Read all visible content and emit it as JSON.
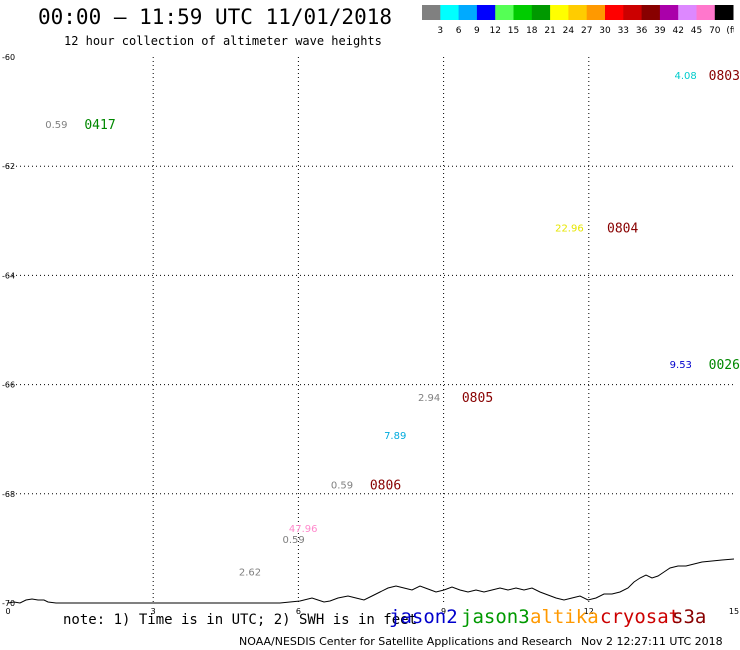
{
  "header": {
    "title": "00:00 – 11:59 UTC 11/01/2018",
    "subtitle": "12 hour collection of altimeter wave heights"
  },
  "colorbar": {
    "labels": [
      "3",
      "6",
      "9",
      "12",
      "15",
      "18",
      "21",
      "24",
      "27",
      "30",
      "33",
      "36",
      "39",
      "42",
      "45",
      "70",
      "(ft)"
    ],
    "colors": [
      "#808080",
      "#00ffff",
      "#00aaff",
      "#0000ff",
      "#55ff55",
      "#00cc00",
      "#009900",
      "#ffff00",
      "#ffcc00",
      "#ff9900",
      "#ff0000",
      "#cc0000",
      "#880000",
      "#aa00aa",
      "#dd88ff",
      "#ff77cc",
      "#000000"
    ]
  },
  "map": {
    "lon_range": [
      0,
      15
    ],
    "lat_range": [
      -70,
      -60
    ],
    "x_ticks": [
      "0",
      "3",
      "6",
      "9",
      "12",
      "15"
    ],
    "y_ticks": [
      "-60",
      "-62",
      "-64",
      "-66",
      "-68",
      "-70"
    ],
    "grid": "dotted",
    "wave_points": [
      {
        "lon": 1.0,
        "lat": -61.3,
        "value": "0.59",
        "color": "#808080"
      },
      {
        "lon": 14.0,
        "lat": -60.4,
        "value": "4.08",
        "color": "#00cccc"
      },
      {
        "lon": 11.6,
        "lat": -63.2,
        "value": "22.96",
        "color": "#e6e600"
      },
      {
        "lon": 13.9,
        "lat": -65.7,
        "value": "9.53",
        "color": "#0000cc"
      },
      {
        "lon": 8.7,
        "lat": -66.3,
        "value": "2.94",
        "color": "#808080"
      },
      {
        "lon": 8.0,
        "lat": -67.0,
        "value": "7.89",
        "color": "#00aadd"
      },
      {
        "lon": 6.9,
        "lat": -67.9,
        "value": "0.59",
        "color": "#808080"
      },
      {
        "lon": 6.1,
        "lat": -68.7,
        "value": "47.96",
        "color": "#ff88cc"
      },
      {
        "lon": 5.9,
        "lat": -68.9,
        "value": "0.59",
        "color": "#808080"
      },
      {
        "lon": 5.0,
        "lat": -69.5,
        "value": "2.62",
        "color": "#808080"
      }
    ],
    "pass_labels": [
      {
        "lon": 1.9,
        "lat": -61.3,
        "label": "0417",
        "color": "#008800"
      },
      {
        "lon": 14.8,
        "lat": -60.4,
        "label": "0803",
        "color": "#880000"
      },
      {
        "lon": 12.7,
        "lat": -63.2,
        "label": "0804",
        "color": "#880000"
      },
      {
        "lon": 14.8,
        "lat": -65.7,
        "label": "0026",
        "color": "#008800"
      },
      {
        "lon": 9.7,
        "lat": -66.3,
        "label": "0805",
        "color": "#880000"
      },
      {
        "lon": 7.8,
        "lat": -67.9,
        "label": "0806",
        "color": "#880000"
      }
    ]
  },
  "note": "note: 1) Time is in UTC; 2) SWH is in feet",
  "satellites": [
    {
      "name": "jason2",
      "color": "#0000cc"
    },
    {
      "name": "jason3",
      "color": "#009900"
    },
    {
      "name": "altika",
      "color": "#ff9900"
    },
    {
      "name": "cryosat",
      "color": "#cc0000"
    },
    {
      "name": "s3a",
      "color": "#880000"
    }
  ],
  "footer": {
    "credit": "NOAA/NESDIS Center for Satellite Applications and Research",
    "timestamp": "Nov  2 12:27:11 UTC 2018"
  }
}
